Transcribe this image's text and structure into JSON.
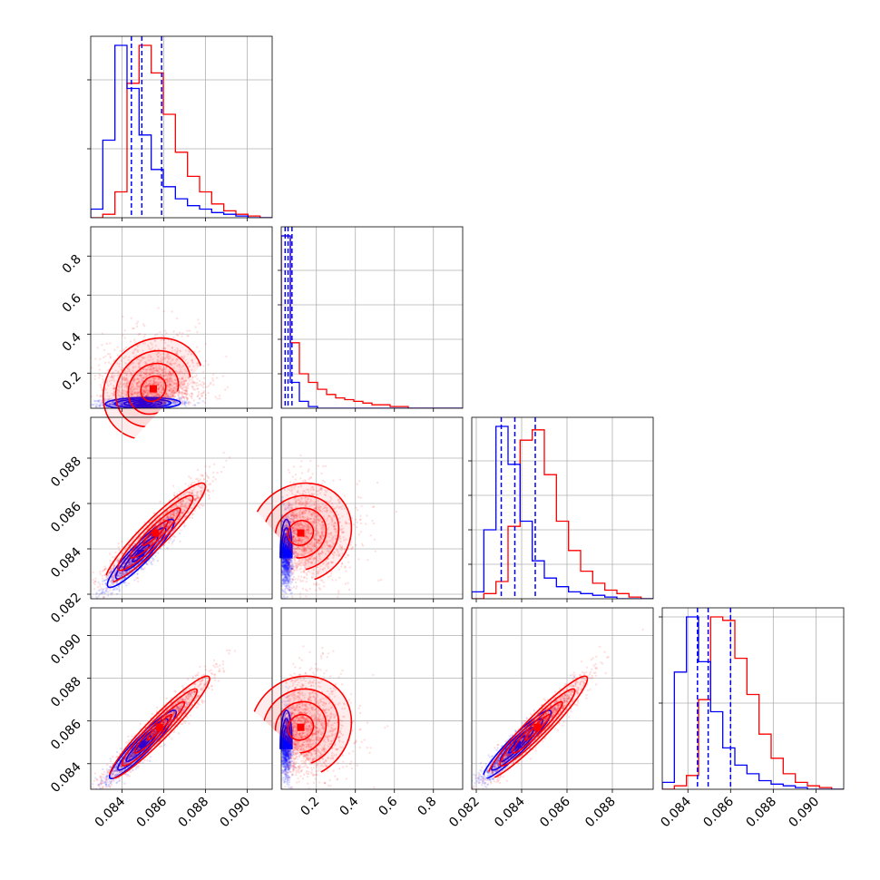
{
  "chart_data": {
    "type": "corner",
    "title": "",
    "grid": true,
    "series": [
      {
        "color": "#ff0000"
      },
      {
        "color": "#0000ff"
      }
    ],
    "parameters": [
      {
        "range": [
          0.0825,
          0.0912
        ],
        "ticks": [
          0.084,
          0.086,
          0.088,
          0.09
        ],
        "tick_labels": [
          "0.084",
          "0.086",
          "0.088",
          "0.090"
        ]
      },
      {
        "range": [
          0.02,
          0.95
        ],
        "ticks": [
          0.2,
          0.4,
          0.6,
          0.8
        ],
        "tick_labels": [
          "0.2",
          "0.4",
          "0.6",
          "0.8"
        ]
      },
      {
        "range": [
          0.0818,
          0.0898
        ],
        "ticks": [
          0.082,
          0.084,
          0.086,
          0.088
        ],
        "tick_labels": [
          "0.082",
          "0.084",
          "0.086",
          "0.088"
        ]
      },
      {
        "range": [
          0.0828,
          0.0913
        ],
        "ticks": [
          0.084,
          0.086,
          0.088,
          0.09
        ],
        "tick_labels": [
          "0.084",
          "0.086",
          "0.088",
          "0.090"
        ]
      }
    ],
    "histograms": [
      {
        "red": [
          0.0,
          0.02,
          0.15,
          0.78,
          1.0,
          0.84,
          0.6,
          0.38,
          0.24,
          0.15,
          0.08,
          0.04,
          0.02,
          0.01,
          0.0
        ],
        "blue": [
          0.05,
          0.45,
          1.0,
          0.75,
          0.48,
          0.28,
          0.18,
          0.11,
          0.07,
          0.05,
          0.03,
          0.02,
          0.01,
          0.0,
          0.0
        ],
        "yticks": [
          0.4,
          0.8
        ],
        "quantiles": [
          0.08445,
          0.08495,
          0.0859
        ]
      },
      {
        "red": [
          1.0,
          0.38,
          0.2,
          0.15,
          0.11,
          0.08,
          0.06,
          0.05,
          0.04,
          0.03,
          0.02,
          0.02,
          0.01,
          0.01,
          0.0,
          0.0,
          0.0,
          0.0,
          0.0,
          0.0
        ],
        "blue": [
          1.0,
          0.15,
          0.04,
          0.01,
          0.0,
          0.0,
          0.0,
          0.0,
          0.0,
          0.0,
          0.0,
          0.0,
          0.0,
          0.0,
          0.0,
          0.0,
          0.0,
          0.0,
          0.0,
          0.0
        ],
        "yticks": [
          0.2,
          0.4,
          0.6,
          0.8
        ],
        "quantiles": [
          0.04,
          0.055,
          0.075
        ]
      },
      {
        "red": [
          0.0,
          0.03,
          0.1,
          0.42,
          0.92,
          0.98,
          0.72,
          0.45,
          0.28,
          0.16,
          0.09,
          0.05,
          0.03,
          0.01,
          0.0
        ],
        "blue": [
          0.04,
          0.4,
          1.0,
          0.78,
          0.45,
          0.22,
          0.12,
          0.07,
          0.04,
          0.03,
          0.02,
          0.01,
          0.0,
          0.0,
          0.0
        ],
        "yticks": [
          0.2,
          0.4,
          0.6,
          0.8
        ],
        "quantiles": [
          0.0831,
          0.0837,
          0.0846
        ]
      },
      {
        "red": [
          0.0,
          0.02,
          0.08,
          0.52,
          1.0,
          0.98,
          0.76,
          0.55,
          0.32,
          0.18,
          0.09,
          0.04,
          0.02,
          0.01,
          0.0
        ],
        "blue": [
          0.04,
          0.68,
          1.0,
          0.74,
          0.45,
          0.24,
          0.14,
          0.09,
          0.05,
          0.03,
          0.02,
          0.01,
          0.0,
          0.0,
          0.0
        ],
        "yticks": [
          0.5,
          1.0
        ],
        "quantiles": [
          0.08445,
          0.08495,
          0.086
        ]
      }
    ],
    "correlations": {
      "1-0": {
        "red": {
          "mean": [
            0.0855,
            0.12
          ],
          "sd": [
            0.0012,
            0.13
          ],
          "rho": 0.15
        },
        "blue": {
          "mean": [
            0.085,
            0.045
          ],
          "sd": [
            0.0009,
            0.015
          ],
          "rho": 0.1
        }
      },
      "2-0": {
        "red": {
          "mean": [
            0.0856,
            0.0847
          ],
          "sd": [
            0.0012,
            0.0011
          ],
          "rho": 0.93
        },
        "blue": {
          "mean": [
            0.0849,
            0.0838
          ],
          "sd": [
            0.0008,
            0.00075
          ],
          "rho": 0.92
        }
      },
      "3-0": {
        "red": {
          "mean": [
            0.0858,
            0.0857
          ],
          "sd": [
            0.0012,
            0.0012
          ],
          "rho": 0.95
        },
        "blue": {
          "mean": [
            0.085,
            0.0849
          ],
          "sd": [
            0.0008,
            0.0008
          ],
          "rho": 0.94
        }
      },
      "2-1": {
        "red": {
          "mean": [
            0.12,
            0.0847
          ],
          "sd": [
            0.13,
            0.0011
          ],
          "rho": 0.1
        },
        "blue": {
          "mean": [
            0.045,
            0.0838
          ],
          "sd": [
            0.015,
            0.00075
          ],
          "rho": 0.05
        }
      },
      "3-1": {
        "red": {
          "mean": [
            0.12,
            0.0857
          ],
          "sd": [
            0.13,
            0.0012
          ],
          "rho": 0.1
        },
        "blue": {
          "mean": [
            0.045,
            0.0849
          ],
          "sd": [
            0.015,
            0.0008
          ],
          "rho": 0.05
        }
      },
      "3-2": {
        "red": {
          "mean": [
            0.0847,
            0.0857
          ],
          "sd": [
            0.0011,
            0.0012
          ],
          "rho": 0.95
        },
        "blue": {
          "mean": [
            0.0838,
            0.0849
          ],
          "sd": [
            0.00075,
            0.0008
          ],
          "rho": 0.94
        }
      }
    }
  }
}
